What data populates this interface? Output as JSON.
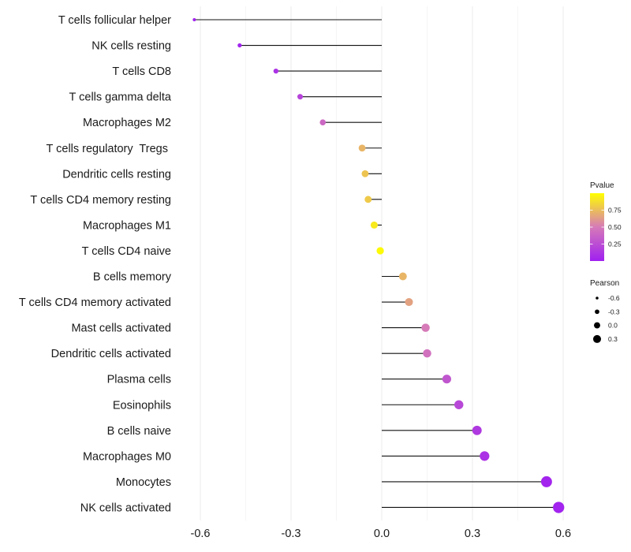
{
  "chart_data": {
    "type": "lollipop",
    "title": "",
    "xlabel": "",
    "ylabel": "",
    "xlim": [
      -0.67,
      0.62
    ],
    "x_ticks": [
      -0.6,
      -0.3,
      0.0,
      0.3,
      0.6
    ],
    "x_tick_labels": [
      "-0.6",
      "-0.3",
      "0.0",
      "0.3",
      "0.6"
    ],
    "grid": true,
    "categories": [
      "T cells follicular helper",
      "NK cells resting",
      "T cells CD8",
      "T cells gamma delta",
      "Macrophages M2",
      "T cells regulatory  Tregs ",
      "Dendritic cells resting",
      "T cells CD4 memory resting",
      "Macrophages M1",
      "T cells CD4 naive",
      "B cells memory",
      "T cells CD4 memory activated",
      "Mast cells activated",
      "Dendritic cells activated",
      "Plasma cells",
      "Eosinophils",
      "B cells naive",
      "Macrophages M0",
      "Monocytes",
      "NK cells activated"
    ],
    "pearson": [
      -0.62,
      -0.47,
      -0.35,
      -0.27,
      -0.195,
      -0.065,
      -0.055,
      -0.045,
      -0.025,
      -0.005,
      0.07,
      0.09,
      0.145,
      0.15,
      0.215,
      0.255,
      0.315,
      0.34,
      0.545,
      0.585
    ],
    "pvalue": [
      0.01,
      0.02,
      0.1,
      0.2,
      0.4,
      0.72,
      0.78,
      0.8,
      0.92,
      0.98,
      0.72,
      0.65,
      0.5,
      0.45,
      0.3,
      0.22,
      0.14,
      0.1,
      0.03,
      0.02
    ],
    "legend_pvalue": {
      "title": "Pvalue",
      "ticks": [
        0.75,
        0.5,
        0.25
      ],
      "tick_labels": [
        "0.75",
        "0.50",
        "0.25"
      ],
      "range": [
        0.0,
        1.0
      ],
      "color_low": "#a020f0",
      "color_mid": "#d67ab8",
      "color_high": "#ffff00",
      "placement": "right"
    },
    "legend_pearson": {
      "title": "Pearson",
      "values": [
        -0.6,
        -0.3,
        0.0,
        0.3
      ],
      "labels": [
        "-0.6",
        "-0.3",
        "0.0",
        "0.3"
      ],
      "placement": "right"
    }
  }
}
